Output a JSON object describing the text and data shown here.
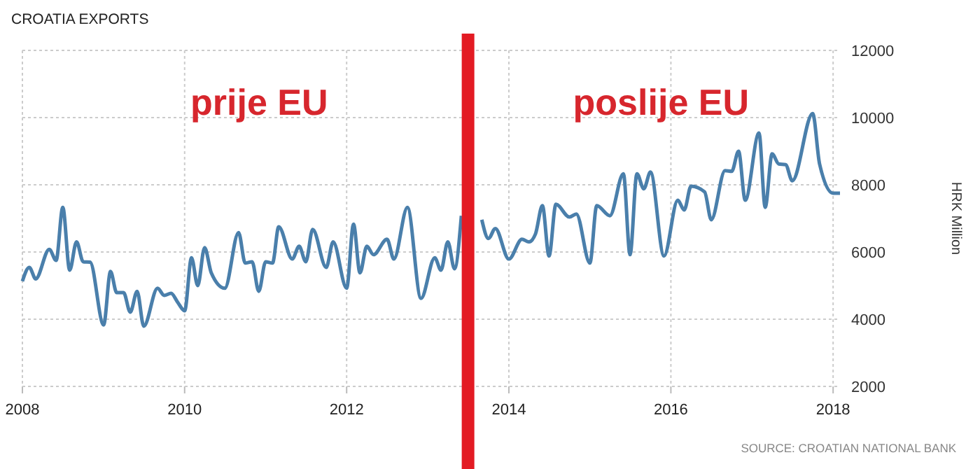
{
  "chart_data": {
    "type": "line",
    "title": "CROATIA EXPORTS",
    "ylabel": "HRK Million",
    "x": [
      "2008-01",
      "2008-02",
      "2008-03",
      "2008-05",
      "2008-06",
      "2008-07",
      "2008-08",
      "2008-09",
      "2008-10",
      "2008-11",
      "2009-01",
      "2009-02",
      "2009-03",
      "2009-04",
      "2009-05",
      "2009-06",
      "2009-07",
      "2009-09",
      "2009-10",
      "2009-11",
      "2009-12",
      "2010-01",
      "2010-02",
      "2010-03",
      "2010-04",
      "2010-05",
      "2010-07",
      "2010-09",
      "2010-10",
      "2010-11",
      "2010-12",
      "2011-01",
      "2011-02",
      "2011-03",
      "2011-05",
      "2011-06",
      "2011-07",
      "2011-08",
      "2011-10",
      "2011-11",
      "2012-01",
      "2012-02",
      "2012-03",
      "2012-04",
      "2012-05",
      "2012-07",
      "2012-08",
      "2012-10",
      "2012-12",
      "2013-02",
      "2013-03",
      "2013-04",
      "2013-05",
      "2013-06",
      "2013-07",
      "2013-09",
      "2013-10",
      "2013-11",
      "2014-01",
      "2014-03",
      "2014-04",
      "2014-05",
      "2014-06",
      "2014-07",
      "2014-08",
      "2014-10",
      "2014-11",
      "2015-01",
      "2015-02",
      "2015-04",
      "2015-06",
      "2015-07",
      "2015-08",
      "2015-09",
      "2015-10",
      "2015-12",
      "2016-02",
      "2016-03",
      "2016-04",
      "2016-06",
      "2016-07",
      "2016-09",
      "2016-10",
      "2016-11",
      "2016-12",
      "2017-02",
      "2017-03",
      "2017-04",
      "2017-05",
      "2017-06",
      "2017-07",
      "2017-10",
      "2017-11",
      "2018-01",
      "2018-02"
    ],
    "series": [
      {
        "color": "#4a7fab",
        "values": [
          5130,
          5540,
          5200,
          6080,
          5750,
          7330,
          5460,
          6300,
          5710,
          5700,
          3830,
          5420,
          4790,
          4790,
          4210,
          4830,
          3790,
          4920,
          4710,
          4770,
          4500,
          4250,
          5830,
          5000,
          6130,
          5380,
          4920,
          6580,
          5670,
          5710,
          4830,
          5710,
          5670,
          6750,
          5790,
          6170,
          5710,
          6670,
          5540,
          6300,
          4920,
          6830,
          5380,
          6170,
          5920,
          6380,
          5790,
          7330,
          4620,
          5830,
          5460,
          6300,
          5500,
          7080,
          null,
          6960,
          6400,
          6700,
          5790,
          6380,
          6300,
          6540,
          7380,
          5880,
          7420,
          7040,
          7130,
          5670,
          7380,
          7080,
          8330,
          5920,
          8330,
          7880,
          8380,
          5880,
          7540,
          7250,
          7960,
          7790,
          6960,
          8420,
          8400,
          9000,
          7540,
          9540,
          7330,
          8920,
          8620,
          8600,
          8120,
          10120,
          8620,
          7750,
          7750
        ]
      }
    ],
    "xlim": [
      "2008-01",
      "2018-02"
    ],
    "xticks": [
      "2008",
      "2010",
      "2012",
      "2014",
      "2016",
      "2018"
    ],
    "ylim": [
      2000,
      12000
    ],
    "yticks": [
      2000,
      4000,
      6000,
      8000,
      10000,
      12000
    ],
    "grid": true,
    "marker": "none",
    "line_style": "solid",
    "ref_lines": [
      {
        "axis": "x",
        "value": "2013-07",
        "color": "#e31b23"
      }
    ],
    "annotations": [
      "prije EU",
      "poslije EU",
      "SOURCE: CROATIAN NATIONAL BANK"
    ]
  }
}
